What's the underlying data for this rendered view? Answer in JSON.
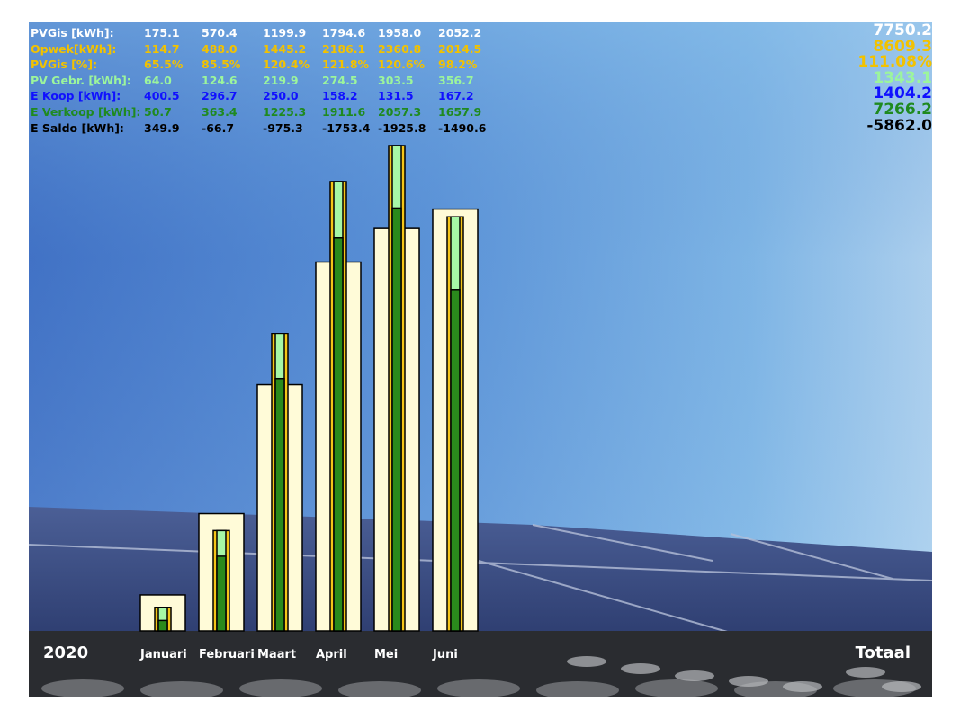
{
  "colors": {
    "pvgis": "#ffffff",
    "opwek": "#f2c200",
    "pvgis_pct": "#f2c200",
    "pv_gebr": "#9cf59c",
    "e_koop": "#1010ff",
    "e_verkoop": "#1f8a1f",
    "e_saldo": "#000000",
    "bar_outer": "#fffbd8",
    "bar_gold": "#f5c518",
    "bar_light": "#a6f7a6",
    "bar_green": "#2a8a1c"
  },
  "stats": {
    "rows": [
      {
        "label": "PVGis [kWh]:",
        "values": [
          "175.1",
          "570.4",
          "1199.9",
          "1794.6",
          "1958.0",
          "2052.2"
        ],
        "total": "7750.2",
        "color_key": "pvgis"
      },
      {
        "label": "Opwek[kWh]:",
        "values": [
          "114.7",
          "488.0",
          "1445.2",
          "2186.1",
          "2360.8",
          "2014.5"
        ],
        "total": "8609.3",
        "color_key": "opwek"
      },
      {
        "label": "PVGis [%]:",
        "values": [
          "65.5%",
          "85.5%",
          "120.4%",
          "121.8%",
          "120.6%",
          "98.2%"
        ],
        "total": "111.08%",
        "color_key": "pvgis_pct"
      },
      {
        "label": "PV Gebr. [kWh]:",
        "values": [
          "64.0",
          "124.6",
          "219.9",
          "274.5",
          "303.5",
          "356.7"
        ],
        "total": "1343.1",
        "color_key": "pv_gebr"
      },
      {
        "label": "E Koop [kWh]:",
        "values": [
          "400.5",
          "296.7",
          "250.0",
          "158.2",
          "131.5",
          "167.2"
        ],
        "total": "1404.2",
        "color_key": "e_koop"
      },
      {
        "label": "E Verkoop [kWh]:",
        "values": [
          "50.7",
          "363.4",
          "1225.3",
          "1911.6",
          "2057.3",
          "1657.9"
        ],
        "total": "7266.2",
        "color_key": "e_verkoop"
      },
      {
        "label": "E Saldo [kWh]:",
        "values": [
          "349.9",
          "-66.7",
          "-975.3",
          "-1753.4",
          "-1925.8",
          "-1490.6"
        ],
        "total": "-5862.0",
        "color_key": "e_saldo"
      }
    ]
  },
  "chart_data": {
    "type": "bar",
    "categories": [
      "Januari",
      "Februari",
      "Maart",
      "April",
      "Mei",
      "Juni"
    ],
    "series": [
      {
        "name": "PVGis [kWh]",
        "values": [
          175.1,
          570.4,
          1199.9,
          1794.6,
          1958.0,
          2052.2
        ]
      },
      {
        "name": "Opwek[kWh]",
        "values": [
          114.7,
          488.0,
          1445.2,
          2186.1,
          2360.8,
          2014.5
        ]
      },
      {
        "name": "PV Gebr. [kWh]",
        "values": [
          64.0,
          124.6,
          219.9,
          274.5,
          303.5,
          356.7
        ]
      },
      {
        "name": "E Verkoop [kWh]",
        "values": [
          50.7,
          363.4,
          1225.3,
          1911.6,
          2057.3,
          1657.9
        ]
      }
    ],
    "ylim": [
      0,
      2360.8
    ],
    "grid": false
  },
  "footer": {
    "year": "2020",
    "total_label": "Totaal"
  }
}
